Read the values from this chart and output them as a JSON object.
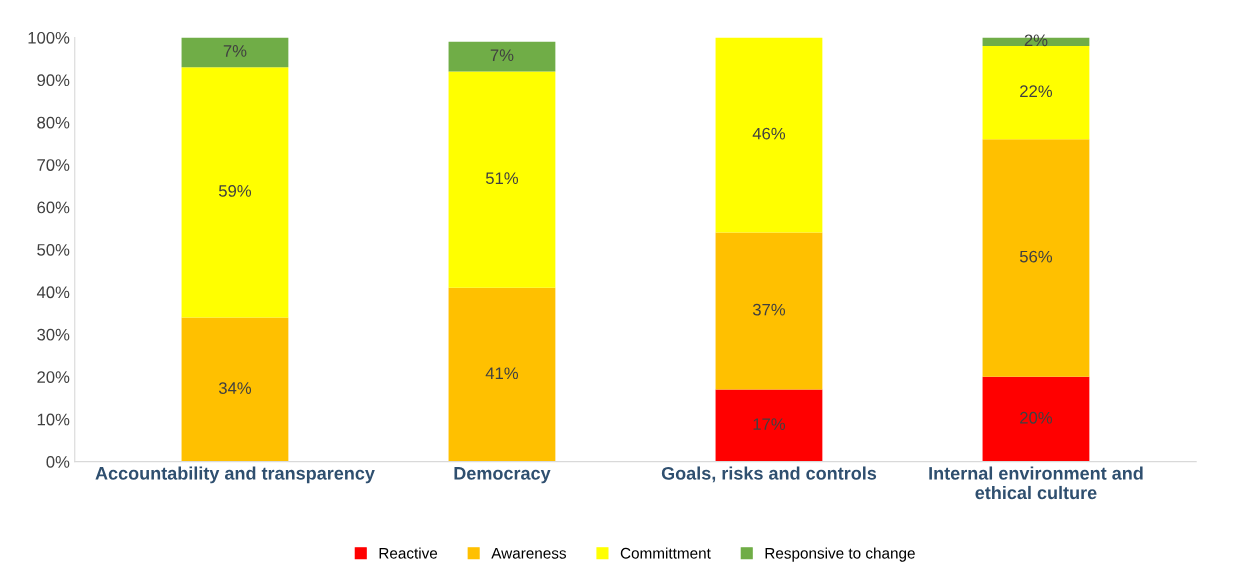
{
  "chart_data": {
    "type": "bar",
    "stacked": true,
    "categories": [
      "Accountability and transparency",
      "Democracy",
      "Goals, risks and controls",
      "Internal environment and\nethical culture"
    ],
    "series": [
      {
        "name": "Reactive",
        "color": "#ff0000",
        "values": [
          0,
          0,
          17,
          20
        ],
        "value_labels": [
          null,
          null,
          "17%",
          "20%"
        ]
      },
      {
        "name": "Awareness",
        "color": "#ffc000",
        "values": [
          34,
          41,
          37,
          56
        ],
        "value_labels": [
          "34%",
          "41%",
          "37%",
          "56%"
        ]
      },
      {
        "name": "Committment",
        "color": "#ffff00",
        "values": [
          59,
          51,
          46,
          22
        ],
        "value_labels": [
          "59%",
          "51%",
          "46%",
          "22%"
        ]
      },
      {
        "name": "Responsive to change",
        "color": "#70ad47",
        "values": [
          7,
          7,
          0,
          2
        ],
        "value_labels": [
          "7%",
          "7%",
          null,
          "2%"
        ]
      }
    ],
    "ylim": [
      0,
      100
    ],
    "yticks": [
      {
        "value": 0,
        "label": "0%"
      },
      {
        "value": 10,
        "label": "10%"
      },
      {
        "value": 20,
        "label": "20%"
      },
      {
        "value": 30,
        "label": "30%"
      },
      {
        "value": 40,
        "label": "40%"
      },
      {
        "value": 50,
        "label": "50%"
      },
      {
        "value": 60,
        "label": "60%"
      },
      {
        "value": 70,
        "label": "70%"
      },
      {
        "value": 80,
        "label": "80%"
      },
      {
        "value": 90,
        "label": "90%"
      },
      {
        "value": 100,
        "label": "100%"
      }
    ],
    "legend": "bottom",
    "grid": false
  }
}
